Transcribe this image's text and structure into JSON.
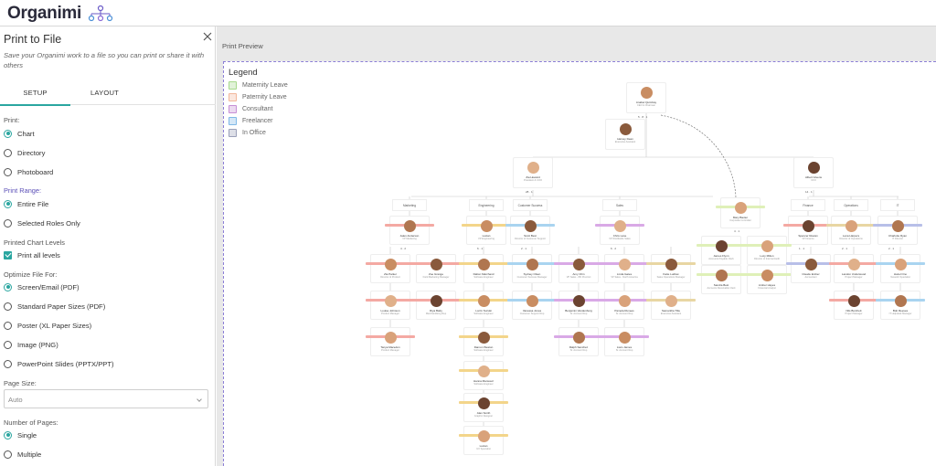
{
  "header": {
    "brand": "Organimi"
  },
  "panel": {
    "title": "Print to File",
    "subtitle": "Save your Organimi work to a file so you can print or share it with others",
    "tabs": [
      {
        "label": "SETUP",
        "active": true
      },
      {
        "label": "LAYOUT",
        "active": false
      }
    ],
    "print_label": "Print:",
    "print_options": [
      {
        "label": "Chart",
        "selected": true
      },
      {
        "label": "Directory",
        "selected": false
      },
      {
        "label": "Photoboard",
        "selected": false
      }
    ],
    "range_label": "Print Range:",
    "range_options": [
      {
        "label": "Entire File",
        "selected": true
      },
      {
        "label": "Selected Roles Only",
        "selected": false
      }
    ],
    "levels_label": "Printed Chart Levels",
    "levels_option": {
      "label": "Print all levels",
      "checked": true
    },
    "optimize_label": "Optimize File For:",
    "optimize_options": [
      {
        "label": "Screen/Email (PDF)",
        "selected": true
      },
      {
        "label": "Standard Paper Sizes (PDF)",
        "selected": false
      },
      {
        "label": "Poster (XL Paper Sizes)",
        "selected": false
      },
      {
        "label": "Image (PNG)",
        "selected": false
      },
      {
        "label": "PowerPoint Slides (PPTX/PPT)",
        "selected": false
      }
    ],
    "page_size_label": "Page Size:",
    "page_size_value": "Auto",
    "pages_label": "Number of Pages:",
    "pages_options": [
      {
        "label": "Single",
        "selected": true
      },
      {
        "label": "Multiple",
        "selected": false
      }
    ]
  },
  "preview": {
    "title": "Print Preview",
    "legend_title": "Legend",
    "legend": [
      {
        "label": "Maternity Leave",
        "color": "#a6d98c",
        "icon": "maternity-icon"
      },
      {
        "label": "Paternity Leave",
        "color": "#f2b79b",
        "icon": "paternity-icon"
      },
      {
        "label": "Consultant",
        "color": "#c78fd6",
        "icon": "consultant-icon"
      },
      {
        "label": "Freelancer",
        "color": "#7fb8e6",
        "icon": "freelancer-icon"
      },
      {
        "label": "In Office",
        "color": "#9aa0b8",
        "icon": "in-office-icon"
      }
    ],
    "colors": {
      "accent": "#2aa6a0",
      "purple": "#5b4fb7",
      "line": "#c8c8c8"
    },
    "org": {
      "ceo": {
        "name": "Anabel Quimbay",
        "role": "CEO & Chairman",
        "count": "5 · 8 · 1"
      },
      "assistant": {
        "name": "Harvey Dean",
        "role": "Executive Assistant"
      },
      "president": {
        "name": "Zia Howard",
        "role": "President & COO",
        "count": "28 · 1"
      },
      "cfo": {
        "name": "Albert Givens",
        "role": "CFO",
        "count": "14 · 1"
      },
      "controller": {
        "name": "Mary Baxter",
        "role": "Corporate Controller",
        "count": "4 · 1"
      },
      "departments": [
        "Marketing",
        "Engineering",
        "Customer Success",
        "Sales",
        "Finance",
        "Operations",
        "IT"
      ],
      "managers": [
        {
          "name": "Jalen Anderson",
          "role": "VP Marketing",
          "count": "4 · 2"
        },
        {
          "name": "Lucian",
          "role": "VP Engineering",
          "count": "6 · 1"
        },
        {
          "name": "Scott Best",
          "role": "Director of Customer Support",
          "count": "2 · 1"
        },
        {
          "name": "Chris Lane",
          "role": "VP Worldwide Sales",
          "count": "6 · 2"
        },
        {
          "name": "Spencer Rowan",
          "role": "VP Finance",
          "count": "1 · 1"
        },
        {
          "name": "Lena Harpers",
          "role": "Director of Operations",
          "count": "2 · 1"
        },
        {
          "name": "Charlotte Ryan",
          "role": "IT Director",
          "count": "2 · 1"
        }
      ],
      "staff": [
        {
          "name": "Zia Parker",
          "role": "Director of Product"
        },
        {
          "name": "Zoe Grange",
          "role": "Field Marketing Manager"
        },
        {
          "name": "Louise Johnson",
          "role": "Product Manager"
        },
        {
          "name": "Riya Batty",
          "role": "Merchandising Rep"
        },
        {
          "name": "Tanya Macedon",
          "role": "Product Manager"
        },
        {
          "name": "Dalton Marchand",
          "role": "Software Engineer"
        },
        {
          "name": "Lorrin Suzuki",
          "role": "Software Engineer"
        },
        {
          "name": "Damon Weston",
          "role": "Software Engineer"
        },
        {
          "name": "Hanna Mansouri",
          "role": "Software Engineer"
        },
        {
          "name": "Alan Smith",
          "role": "Graphic Designer"
        },
        {
          "name": "Lucian",
          "role": "UX Specialist"
        },
        {
          "name": "Sydney Olsen",
          "role": "Customer Success Manager"
        },
        {
          "name": "Vanessa Jones",
          "role": "Customer Support Rep"
        },
        {
          "name": "Amy Chin",
          "role": "VP Sales - 8th Precinct"
        },
        {
          "name": "Linda Gates",
          "role": "VP Sales - North America"
        },
        {
          "name": "Benjamin Vandenburg",
          "role": "Sr. Account Rep"
        },
        {
          "name": "Pamela Runees",
          "role": "Sr. Account Rep"
        },
        {
          "name": "Ralph Sanchez",
          "role": "Sr. Account Rep"
        },
        {
          "name": "Liam James",
          "role": "Sr. Account Rep"
        },
        {
          "name": "Katie Ludlow",
          "role": "Sales Operations Manager"
        },
        {
          "name": "Samantha Title",
          "role": "Executive Assistant"
        },
        {
          "name": "James Flynn",
          "role": "Accounts Payable Clerk"
        },
        {
          "name": "Lucy Milton",
          "role": "Director of Internal Audit"
        },
        {
          "name": "Sandra Best",
          "role": "Accounts Receivable Clerk"
        },
        {
          "name": "Amber Hayes",
          "role": "Financial Analyst"
        },
        {
          "name": "Claude Ember",
          "role": "Accountant"
        },
        {
          "name": "Landon Underwood",
          "role": "Project Manager"
        },
        {
          "name": "Nils Burchett",
          "role": "Project Manager"
        },
        {
          "name": "Hazel Ono",
          "role": "Network Specialist"
        },
        {
          "name": "Bob Reeves",
          "role": "IT Helpdesk Manager"
        }
      ]
    }
  }
}
